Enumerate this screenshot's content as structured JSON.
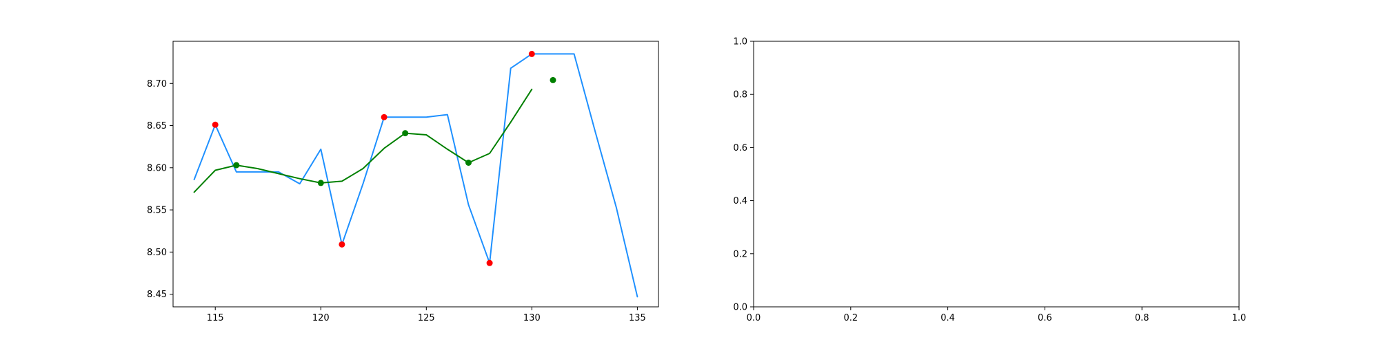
{
  "chart_data": [
    {
      "type": "line",
      "title": "",
      "xlabel": "",
      "ylabel": "",
      "xlim": [
        113,
        136
      ],
      "ylim": [
        8.435,
        8.75
      ],
      "x_ticks": [
        115,
        120,
        125,
        130,
        135
      ],
      "x_tick_labels": [
        "115",
        "120",
        "125",
        "130",
        "135"
      ],
      "y_ticks": [
        8.45,
        8.5,
        8.55,
        8.6,
        8.65,
        8.7
      ],
      "y_tick_labels": [
        "8.45",
        "8.50",
        "8.55",
        "8.60",
        "8.65",
        "8.70"
      ],
      "grid": false,
      "legend": "none",
      "series": [
        {
          "kind": "line",
          "color": "#1e90ff",
          "x": [
            114,
            115,
            116,
            117,
            118,
            119,
            120,
            121,
            122,
            123,
            124,
            125,
            126,
            127,
            128,
            129,
            130,
            131,
            132,
            133,
            134,
            135
          ],
          "y": [
            8.586,
            8.651,
            8.595,
            8.595,
            8.595,
            8.581,
            8.622,
            8.509,
            8.581,
            8.66,
            8.66,
            8.66,
            8.663,
            8.556,
            8.487,
            8.718,
            8.735,
            8.735,
            8.735,
            8.643,
            8.553,
            8.447
          ]
        },
        {
          "kind": "line",
          "color": "#008000",
          "x": [
            114,
            115,
            116,
            117,
            118,
            119,
            120,
            121,
            122,
            123,
            124,
            125,
            126,
            127,
            128,
            129,
            130
          ],
          "y": [
            8.571,
            8.597,
            8.603,
            8.599,
            8.593,
            8.587,
            8.582,
            8.584,
            8.599,
            8.623,
            8.641,
            8.639,
            8.622,
            8.606,
            8.617,
            8.654,
            8.693
          ]
        },
        {
          "kind": "scatter",
          "color": "#ff0000",
          "x": [
            115,
            121,
            123,
            128,
            130
          ],
          "y": [
            8.651,
            8.509,
            8.66,
            8.487,
            8.735
          ]
        },
        {
          "kind": "scatter",
          "color": "#008000",
          "x": [
            116,
            120,
            124,
            127,
            131
          ],
          "y": [
            8.603,
            8.582,
            8.641,
            8.606,
            8.704
          ]
        }
      ]
    },
    {
      "type": "line",
      "title": "",
      "xlabel": "",
      "ylabel": "",
      "xlim": [
        0,
        1
      ],
      "ylim": [
        0,
        1
      ],
      "x_ticks": [
        0,
        0.2,
        0.4,
        0.6,
        0.8,
        1.0
      ],
      "x_tick_labels": [
        "0.0",
        "0.2",
        "0.4",
        "0.6",
        "0.8",
        "1.0"
      ],
      "y_ticks": [
        0,
        0.2,
        0.4,
        0.6,
        0.8,
        1.0
      ],
      "y_tick_labels": [
        "0.0",
        "0.2",
        "0.4",
        "0.6",
        "0.8",
        "1.0"
      ],
      "grid": false,
      "legend": "none",
      "series": []
    }
  ]
}
